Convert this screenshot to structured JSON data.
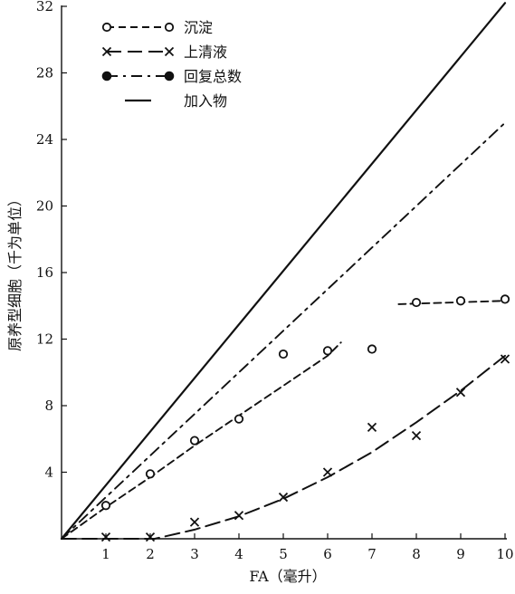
{
  "chart_data": {
    "type": "line",
    "title": "",
    "xlabel": "FA（毫升）",
    "ylabel": "原养型细胞（千为单位）",
    "xlim": [
      0,
      10
    ],
    "ylim": [
      0,
      32
    ],
    "x_ticks": [
      1,
      2,
      3,
      4,
      5,
      6,
      7,
      8,
      9,
      10
    ],
    "y_ticks": [
      4,
      8,
      12,
      16,
      20,
      24,
      28,
      32
    ],
    "grid": false,
    "legend_position": "top-left",
    "series": [
      {
        "name": "沉淀",
        "marker": "open-circle",
        "line": "dashed",
        "points": [
          [
            1,
            2.0
          ],
          [
            2,
            3.9
          ],
          [
            3,
            5.9
          ],
          [
            4,
            7.2
          ],
          [
            5,
            11.1
          ],
          [
            6,
            11.3
          ],
          [
            7,
            11.4
          ]
        ],
        "fit": [
          [
            0,
            0
          ],
          [
            1,
            1.9
          ],
          [
            2,
            3.7
          ],
          [
            3,
            5.6
          ],
          [
            4,
            7.4
          ],
          [
            5,
            9.2
          ],
          [
            6,
            11.0
          ],
          [
            6.3,
            11.8
          ]
        ]
      },
      {
        "name": "上清液",
        "marker": "x",
        "line": "long-dash",
        "points": [
          [
            1,
            0.1
          ],
          [
            2,
            0.1
          ],
          [
            3,
            1.0
          ],
          [
            4,
            1.4
          ],
          [
            5,
            2.5
          ],
          [
            6,
            4.0
          ],
          [
            7,
            6.7
          ],
          [
            8,
            6.2
          ],
          [
            9,
            8.8
          ],
          [
            10,
            10.8
          ]
        ],
        "fit": [
          [
            0,
            0
          ],
          [
            2.1,
            0
          ],
          [
            3,
            0.55
          ],
          [
            4,
            1.35
          ],
          [
            5,
            2.4
          ],
          [
            6,
            3.7
          ],
          [
            7,
            5.2
          ],
          [
            8,
            7.0
          ],
          [
            9,
            8.9
          ],
          [
            10,
            11.0
          ]
        ]
      },
      {
        "name": "回复总数",
        "marker": "filled-circle",
        "line": "dash-dot",
        "points": [],
        "fit": [
          [
            0,
            0
          ],
          [
            10,
            25
          ]
        ]
      },
      {
        "name": "加入物",
        "marker": "none",
        "line": "solid",
        "points": [],
        "fit": [
          [
            0,
            0
          ],
          [
            10,
            32.2
          ]
        ]
      },
      {
        "name": "",
        "marker": "open-circle",
        "line": "dashed",
        "points": [
          [
            8,
            14.2
          ],
          [
            9,
            14.3
          ],
          [
            10,
            14.4
          ]
        ],
        "fit": [
          [
            7.6,
            14.1
          ],
          [
            10,
            14.3
          ]
        ]
      }
    ],
    "colors": {
      "line": "#111111",
      "background": "#ffffff"
    }
  }
}
